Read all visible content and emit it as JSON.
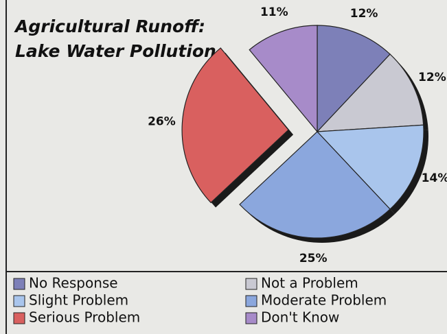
{
  "chart_data": {
    "type": "pie",
    "title": [
      "Agricultural Runoff:",
      "Lake Water Pollution"
    ],
    "categories": [
      "No Response",
      "Not a Problem",
      "Slight Problem",
      "Moderate Problem",
      "Serious Problem",
      "Don't Know"
    ],
    "values": [
      12,
      12,
      14,
      25,
      26,
      11
    ],
    "value_labels": [
      "12%",
      "12%",
      "14%",
      "25%",
      "26%",
      "11%"
    ],
    "colors": [
      "#7d80b8",
      "#c9c9d2",
      "#a9c5ec",
      "#8ba7dd",
      "#d9605f",
      "#a78bc9"
    ],
    "exploded": [
      4
    ]
  }
}
